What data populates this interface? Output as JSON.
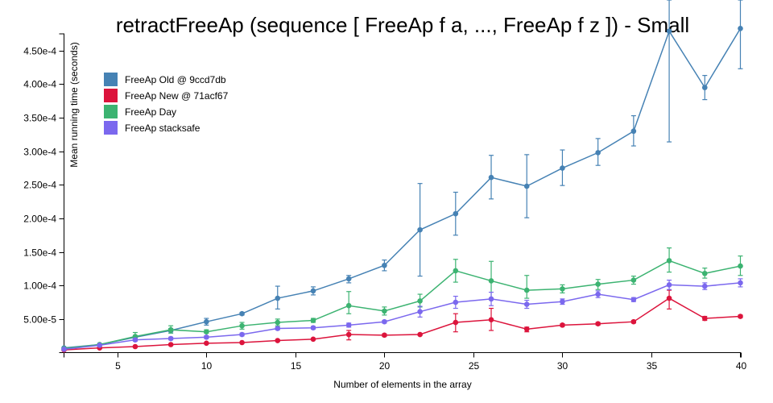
{
  "chart_data": {
    "type": "line",
    "title": "retractFreeAp (sequence [ FreeAp f a, ..., FreeAp f z ]) - Small",
    "xlabel": "Number of elements in the array",
    "ylabel": "Mean running time (seconds)",
    "xlim": [
      2,
      40
    ],
    "ylim": [
      0,
      0.000475
    ],
    "xticks": [
      5,
      10,
      15,
      20,
      25,
      30,
      35,
      40
    ],
    "xtick_labels": [
      "5",
      "10",
      "15",
      "20",
      "25",
      "30",
      "35",
      "40"
    ],
    "yticks": [
      5e-05,
      0.0001,
      0.00015,
      0.0002,
      0.00025,
      0.0003,
      0.00035,
      0.0004,
      0.00045
    ],
    "ytick_labels": [
      "5.00e-5",
      "1.00e-4",
      "1.50e-4",
      "2.00e-4",
      "2.50e-4",
      "3.00e-4",
      "3.50e-4",
      "4.00e-4",
      "4.50e-4"
    ],
    "legend_position": "top-left",
    "x": [
      2,
      4,
      6,
      8,
      10,
      12,
      14,
      16,
      18,
      20,
      22,
      24,
      26,
      28,
      30,
      32,
      34,
      36,
      38,
      40
    ],
    "series": [
      {
        "name": "FreeAp Old @ 9ccd7db",
        "color": "#4682b4",
        "values": [
          7e-06,
          1.2e-05,
          2.3e-05,
          3.3e-05,
          4.6e-05,
          5.8e-05,
          8.1e-05,
          9.2e-05,
          0.00011,
          0.00013,
          0.000183,
          0.000207,
          0.000261,
          0.000248,
          0.000275,
          0.000298,
          0.00033,
          0.000479,
          0.000395,
          0.000483
        ],
        "err_low": [
          6e-06,
          1.1e-05,
          2.1e-05,
          3.1e-05,
          4.1e-05,
          5.6e-05,
          6.5e-05,
          8.6e-05,
          0.000104,
          0.000122,
          0.000114,
          0.000175,
          0.000229,
          0.000201,
          0.000249,
          0.000279,
          0.000308,
          0.000314,
          0.000377,
          0.000423
        ],
        "err_high": [
          8e-06,
          1.3e-05,
          2.5e-05,
          3.6e-05,
          5.1e-05,
          6e-05,
          9.9e-05,
          9.8e-05,
          0.000115,
          0.000138,
          0.000252,
          0.000239,
          0.000294,
          0.000295,
          0.000302,
          0.000319,
          0.000353,
          0.00053,
          0.000413,
          0.00053
        ]
      },
      {
        "name": "FreeAp New @ 71acf67",
        "color": "#dc143c",
        "values": [
          4e-06,
          7e-06,
          9e-06,
          1.2e-05,
          1.4e-05,
          1.5e-05,
          1.8e-05,
          2e-05,
          2.7e-05,
          2.6e-05,
          2.7e-05,
          4.5e-05,
          4.9e-05,
          3.5e-05,
          4.1e-05,
          4.3e-05,
          4.6e-05,
          8.1e-05,
          5.1e-05,
          5.4e-05
        ],
        "err_low": [
          3e-06,
          6e-06,
          8e-06,
          1.1e-05,
          1.3e-05,
          1.4e-05,
          1.7e-05,
          1.9e-05,
          1.9e-05,
          2.4e-05,
          2.6e-05,
          3.1e-05,
          3.3e-05,
          3.1e-05,
          3.9e-05,
          4.1e-05,
          4.4e-05,
          6.5e-05,
          4.8e-05,
          5.2e-05
        ],
        "err_high": [
          5e-06,
          8e-06,
          1e-05,
          1.3e-05,
          1.5e-05,
          1.6e-05,
          1.9e-05,
          2.1e-05,
          3.3e-05,
          2.8e-05,
          2.8e-05,
          5.8e-05,
          6.6e-05,
          3.8e-05,
          4.3e-05,
          4.5e-05,
          4.8e-05,
          9.3e-05,
          5.4e-05,
          5.6e-05
        ]
      },
      {
        "name": "FreeAp Day",
        "color": "#3cb371",
        "values": [
          6e-06,
          1.2e-05,
          2.4e-05,
          3.4e-05,
          3.1e-05,
          4e-05,
          4.5e-05,
          4.8e-05,
          7e-05,
          6.2e-05,
          7.7e-05,
          0.000122,
          0.000107,
          9.3e-05,
          9.5e-05,
          0.000102,
          0.000108,
          0.000137,
          0.000118,
          0.000129
        ],
        "err_low": [
          5e-06,
          1.1e-05,
          2e-05,
          2.9e-05,
          2.9e-05,
          3.5e-05,
          4e-05,
          4.5e-05,
          5.8e-05,
          5.6e-05,
          6.8e-05,
          0.000105,
          7.9e-05,
          8.1e-05,
          8.9e-05,
          9.4e-05,
          0.000102,
          0.00012,
          0.000111,
          0.000115
        ],
        "err_high": [
          7e-06,
          1.3e-05,
          3e-05,
          4e-05,
          3.4e-05,
          4.5e-05,
          5e-05,
          5.1e-05,
          9.1e-05,
          6.8e-05,
          8.7e-05,
          0.000139,
          0.000136,
          0.000115,
          0.000101,
          0.000109,
          0.000114,
          0.000156,
          0.000126,
          0.000144
        ]
      },
      {
        "name": "FreeAp stacksafe",
        "color": "#7b68ee",
        "values": [
          5e-06,
          1.1e-05,
          1.9e-05,
          2.1e-05,
          2.3e-05,
          2.7e-05,
          3.6e-05,
          3.7e-05,
          4.1e-05,
          4.6e-05,
          6.1e-05,
          7.5e-05,
          8e-05,
          7.2e-05,
          7.6e-05,
          8.7e-05,
          7.9e-05,
          0.000101,
          9.9e-05,
          0.000104
        ],
        "err_low": [
          4e-06,
          1e-05,
          1.7e-05,
          1.9e-05,
          2.1e-05,
          2.5e-05,
          3.4e-05,
          3.5e-05,
          3.8e-05,
          4.4e-05,
          5.3e-05,
          6.6e-05,
          7e-05,
          6.6e-05,
          7.2e-05,
          8.2e-05,
          7.6e-05,
          9.4e-05,
          9.4e-05,
          9.8e-05
        ],
        "err_high": [
          6e-06,
          1.2e-05,
          2.1e-05,
          2.3e-05,
          2.5e-05,
          2.9e-05,
          3.8e-05,
          3.9e-05,
          4.4e-05,
          4.8e-05,
          6.9e-05,
          8.4e-05,
          9e-05,
          7.8e-05,
          8e-05,
          9.2e-05,
          8.2e-05,
          0.000108,
          0.000104,
          0.00011
        ]
      }
    ]
  }
}
